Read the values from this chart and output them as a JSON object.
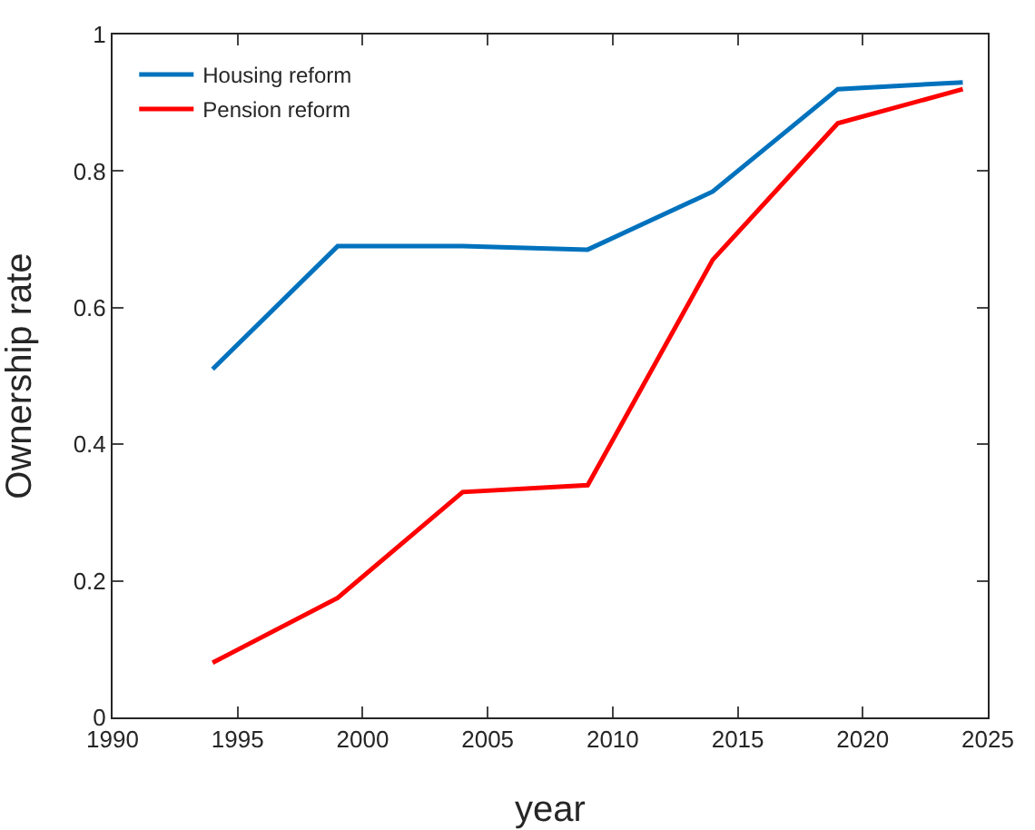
{
  "chart_data": {
    "type": "line",
    "xlabel": "year",
    "ylabel": "Ownership rate",
    "x": [
      1994,
      1999,
      2004,
      2009,
      2014,
      2019,
      2024
    ],
    "series": [
      {
        "name": "Housing reform",
        "color": "#0072bd",
        "values": [
          0.51,
          0.69,
          0.69,
          0.685,
          0.77,
          0.92,
          0.93
        ]
      },
      {
        "name": "Pension reform",
        "color": "#ff0000",
        "values": [
          0.08,
          0.175,
          0.33,
          0.34,
          0.67,
          0.87,
          0.92
        ]
      }
    ],
    "xlim": [
      1990,
      2025
    ],
    "xticks": [
      1990,
      1995,
      2000,
      2005,
      2010,
      2015,
      2020,
      2025
    ],
    "ylim": [
      0,
      1
    ],
    "yticks": [
      0,
      0.2,
      0.4,
      0.6,
      0.8,
      1
    ],
    "grid": false,
    "legend": "top left",
    "line_style": "solid",
    "marker": "none"
  }
}
